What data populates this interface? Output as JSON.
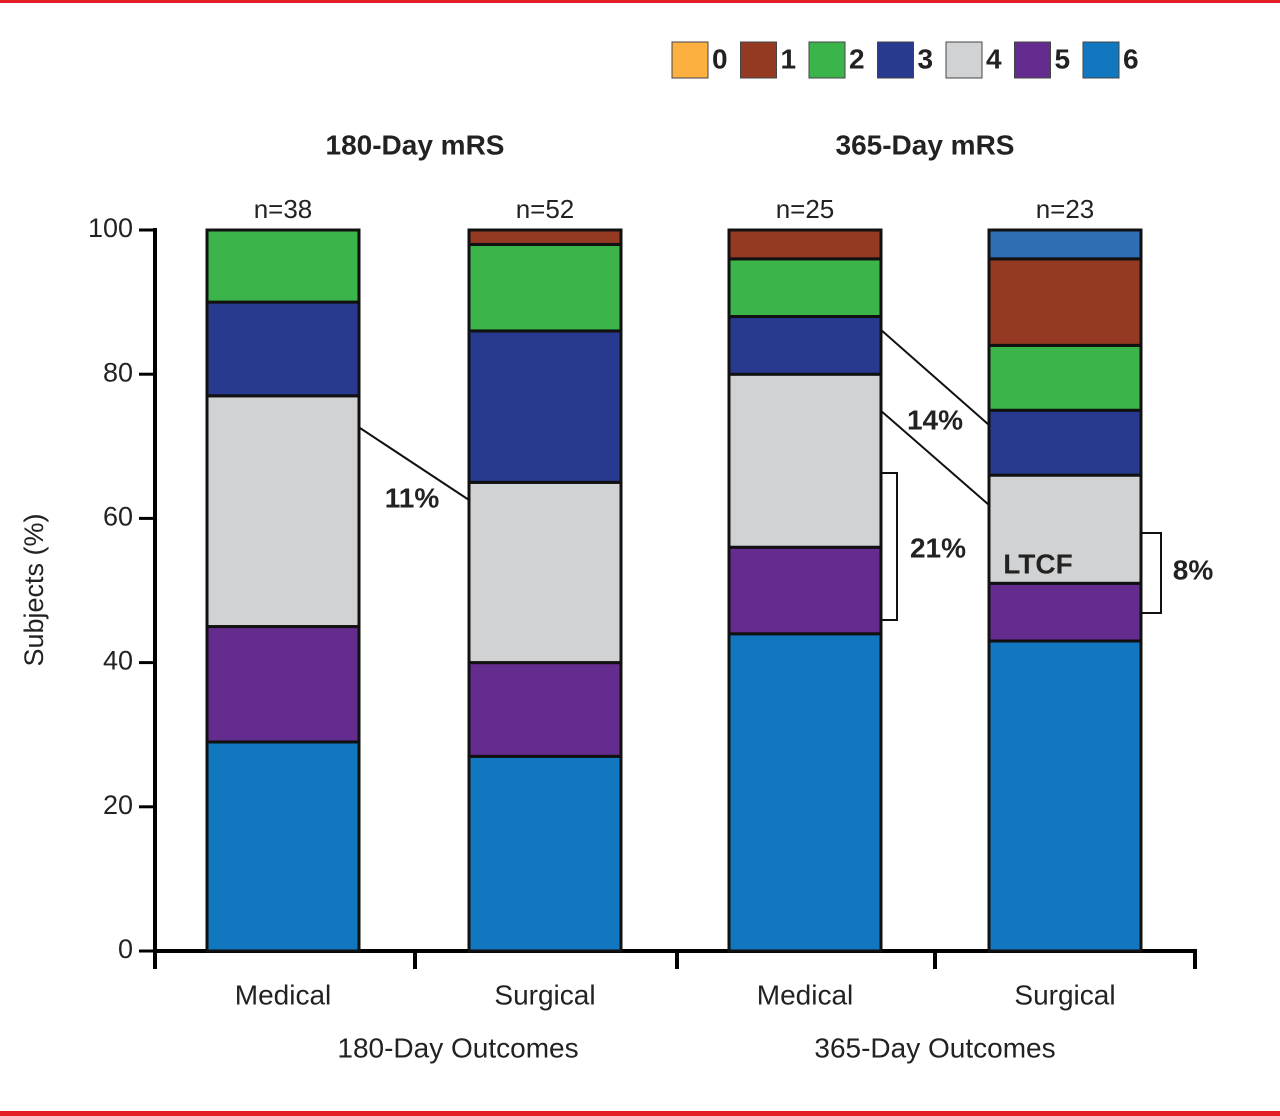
{
  "chart_data": {
    "type": "stacked_bar",
    "ylabel": "Subjects (%)",
    "ylim": [
      0,
      100
    ],
    "yticks": [
      0,
      20,
      40,
      60,
      80,
      100
    ],
    "categories": [
      "Medical",
      "Surgical",
      "Medical",
      "Surgical"
    ],
    "n_labels": [
      "n=38",
      "n=52",
      "n=25",
      "n=23"
    ],
    "groups": [
      {
        "title": "180-Day mRS",
        "label": "180-Day Outcomes"
      },
      {
        "title": "365-Day mRS",
        "label": "365-Day Outcomes"
      }
    ],
    "series": [
      {
        "name": "0",
        "color": "#fbb040",
        "point_colors": [
          "#fbb040",
          "#fbb040",
          "#fbb040",
          "#2f6db5"
        ],
        "values": [
          0,
          0,
          0,
          4
        ]
      },
      {
        "name": "1",
        "color": "#953a22",
        "values": [
          0,
          2,
          4,
          12
        ]
      },
      {
        "name": "2",
        "color": "#3bb44a",
        "values": [
          10,
          12,
          8,
          9
        ]
      },
      {
        "name": "3",
        "color": "#283a8f",
        "values": [
          13,
          21,
          8,
          9
        ]
      },
      {
        "name": "4",
        "color": "#d1d2d4",
        "values": [
          32,
          25,
          24,
          15
        ]
      },
      {
        "name": "5",
        "color": "#652c90",
        "values": [
          16,
          13,
          12,
          8
        ]
      },
      {
        "name": "6",
        "color": "#1177bf",
        "values": [
          29,
          27,
          44,
          43
        ]
      }
    ],
    "annotations": [
      "11%",
      "14%",
      "21%",
      "8%",
      "LTCF"
    ]
  }
}
